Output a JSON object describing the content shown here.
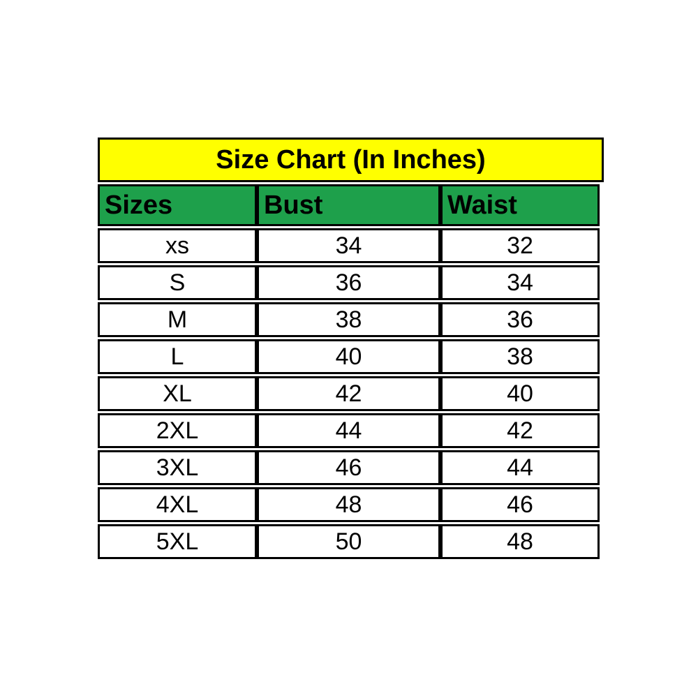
{
  "colors": {
    "title_bg": "#ffff00",
    "header_bg": "#1ea04b",
    "border": "#000000",
    "text": "#000000",
    "page_bg": "#ffffff"
  },
  "title_bar": {
    "text": "Size Chart (In Inches)"
  },
  "size_table": {
    "columns": [
      "Sizes",
      "Bust",
      "Waist"
    ],
    "rows": [
      [
        "xs",
        "34",
        "32"
      ],
      [
        "S",
        "36",
        "34"
      ],
      [
        "M",
        "38",
        "36"
      ],
      [
        "L",
        "40",
        "38"
      ],
      [
        "XL",
        "42",
        "40"
      ],
      [
        "2XL",
        "44",
        "42"
      ],
      [
        "3XL",
        "46",
        "44"
      ],
      [
        "4XL",
        "48",
        "46"
      ],
      [
        "5XL",
        "50",
        "48"
      ]
    ]
  },
  "chart_data": {
    "type": "table",
    "title": "Size Chart (In Inches)",
    "columns": [
      "Sizes",
      "Bust",
      "Waist"
    ],
    "rows": [
      [
        "xs",
        34,
        32
      ],
      [
        "S",
        36,
        34
      ],
      [
        "M",
        38,
        36
      ],
      [
        "L",
        40,
        38
      ],
      [
        "XL",
        42,
        40
      ],
      [
        "2XL",
        44,
        42
      ],
      [
        "3XL",
        46,
        44
      ],
      [
        "4XL",
        48,
        46
      ],
      [
        "5XL",
        50,
        48
      ]
    ]
  }
}
